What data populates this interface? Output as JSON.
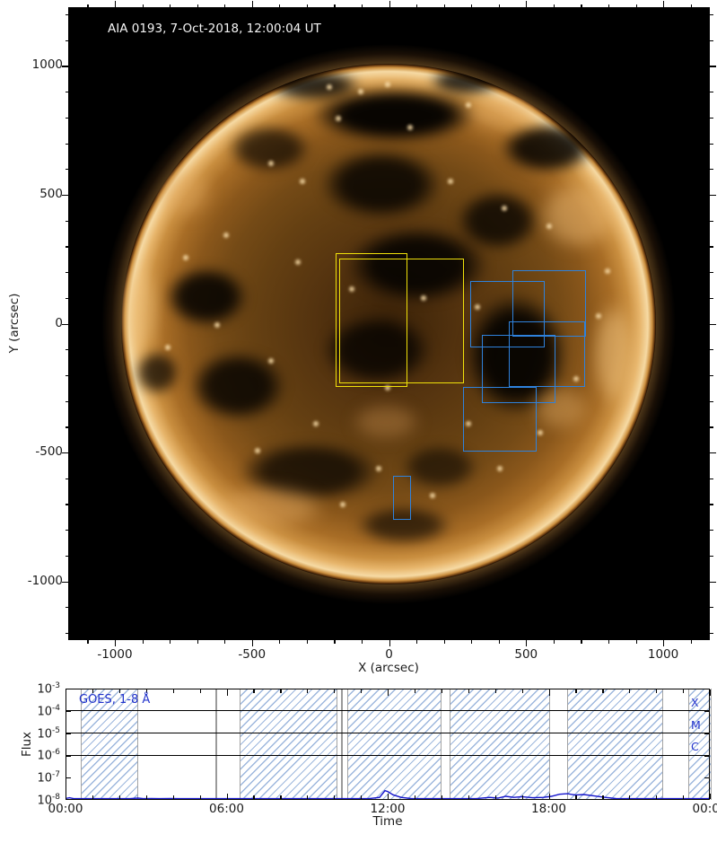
{
  "figure": {
    "title": "AIA 0193, 7-Oct-2018, 12:00:04 UT",
    "colors": {
      "yellow_box": "#f0e10a",
      "blue_box": "#2f82dc",
      "goes_curve": "#1414cc",
      "goes_text_blue": "#2233cc",
      "hatch_blue": "#9db7dd",
      "image_background": "#000000"
    }
  },
  "chart_data": [
    {
      "type": "image",
      "title": "AIA 0193, 7-Oct-2018, 12:00:04 UT",
      "xlabel": "X (arcsec)",
      "ylabel": "Y (arcsec)",
      "x_range": [
        -1170,
        1170
      ],
      "y_range": [
        -1228,
        1228
      ],
      "x_ticks": [
        -1000,
        -500,
        0,
        500,
        1000
      ],
      "y_ticks": [
        1000,
        500,
        0,
        -500,
        -1000
      ],
      "minor_tick_step": 100,
      "overlay_regions": {
        "yellow": [
          {
            "x_min": -196,
            "x_max": 59,
            "y_min": -237,
            "y_max": 272
          },
          {
            "x_min": -183,
            "x_max": 268,
            "y_min": -226,
            "y_max": 254
          }
        ],
        "blue": [
          {
            "x_min": 297,
            "x_max": 562,
            "y_min": -84,
            "y_max": 164
          },
          {
            "x_min": 451,
            "x_max": 712,
            "y_min": -45,
            "y_max": 209
          },
          {
            "x_min": 438,
            "x_max": 709,
            "y_min": -240,
            "y_max": 10
          },
          {
            "x_min": 340,
            "x_max": 601,
            "y_min": -300,
            "y_max": -42
          },
          {
            "x_min": 271,
            "x_max": 533,
            "y_min": -488,
            "y_max": -244
          },
          {
            "x_min": 16,
            "x_max": 75,
            "y_min": -753,
            "y_max": -589
          }
        ]
      }
    },
    {
      "type": "line",
      "xlabel": "Time",
      "ylabel": "Flux",
      "x_tick_labels": [
        "00:00",
        "06:00",
        "12:00",
        "18:00",
        "00:00"
      ],
      "x_tick_hours": [
        0,
        6,
        12,
        18,
        24
      ],
      "y_scale": "log",
      "y_exponents": [
        -3,
        -4,
        -5,
        -6,
        -7,
        -8
      ],
      "class_boundaries": [
        {
          "label": "X",
          "exp": -4
        },
        {
          "label": "M",
          "exp": -5
        },
        {
          "label": "C",
          "exp": -6
        }
      ],
      "hatched_intervals_hours": [
        [
          0.57,
          2.64
        ],
        [
          6.49,
          10.07
        ],
        [
          10.5,
          13.95
        ],
        [
          14.3,
          18.0
        ],
        [
          18.7,
          22.2
        ],
        [
          23.2,
          24
        ]
      ],
      "gray_line_hours": [
        5.6,
        10.3
      ],
      "series": [
        {
          "name": "GOES, 1-8 Å",
          "points": [
            [
              0.0,
              1.15e-08
            ],
            [
              0.15,
              1.25e-08
            ],
            [
              0.3,
              1.1e-08
            ],
            [
              0.5,
              1e-08
            ],
            [
              1.0,
              1e-08
            ],
            [
              1.5,
              1e-08
            ],
            [
              2.0,
              1e-08
            ],
            [
              2.4,
              1.05e-08
            ],
            [
              2.7,
              1.2e-08
            ],
            [
              2.9,
              1.05e-08
            ],
            [
              3.2,
              1.15e-08
            ],
            [
              3.5,
              1.05e-08
            ],
            [
              3.9,
              1.15e-08
            ],
            [
              4.2,
              1.05e-08
            ],
            [
              4.6,
              1e-08
            ],
            [
              5.5,
              1e-08
            ],
            [
              7.0,
              1e-08
            ],
            [
              9.0,
              1e-08
            ],
            [
              10.5,
              1e-08
            ],
            [
              11.3,
              1.05e-08
            ],
            [
              11.7,
              1.3e-08
            ],
            [
              11.9,
              2.6e-08
            ],
            [
              12.0,
              2.4e-08
            ],
            [
              12.2,
              1.7e-08
            ],
            [
              12.5,
              1.3e-08
            ],
            [
              12.9,
              1.1e-08
            ],
            [
              13.5,
              1e-08
            ],
            [
              14.5,
              1.05e-08
            ],
            [
              15.3,
              1.1e-08
            ],
            [
              15.8,
              1.3e-08
            ],
            [
              16.1,
              1.2e-08
            ],
            [
              16.4,
              1.45e-08
            ],
            [
              16.7,
              1.3e-08
            ],
            [
              17.0,
              1.4e-08
            ],
            [
              17.4,
              1.25e-08
            ],
            [
              17.8,
              1.3e-08
            ],
            [
              18.1,
              1.45e-08
            ],
            [
              18.4,
              1.8e-08
            ],
            [
              18.7,
              1.9e-08
            ],
            [
              19.0,
              1.65e-08
            ],
            [
              19.3,
              1.75e-08
            ],
            [
              19.7,
              1.5e-08
            ],
            [
              20.1,
              1.3e-08
            ],
            [
              20.5,
              1.15e-08
            ],
            [
              21.0,
              1.05e-08
            ],
            [
              22.0,
              1e-08
            ],
            [
              22.8,
              1.1e-08
            ],
            [
              23.5,
              1e-08
            ],
            [
              24.0,
              1e-08
            ]
          ]
        }
      ]
    }
  ]
}
